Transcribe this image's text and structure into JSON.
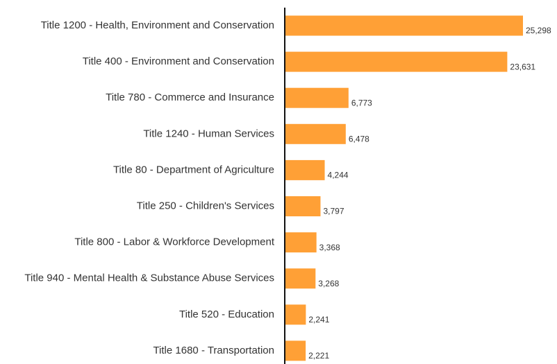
{
  "chart_data": {
    "type": "bar",
    "orientation": "horizontal",
    "title": "",
    "xlabel": "",
    "ylabel": "",
    "categories": [
      "Title 1200 - Health, Environment and Conservation",
      "Title 400 - Environment and Conservation",
      "Title 780 - Commerce and Insurance",
      "Title 1240 - Human Services",
      "Title 80 - Department of Agriculture",
      "Title 250 - Children's Services",
      "Title 800 - Labor & Workforce Development",
      "Title 940 - Mental Health & Substance Abuse Services",
      "Title 520 - Education",
      "Title 1680 - Transportation"
    ],
    "values": [
      25298,
      23631,
      6773,
      6478,
      4244,
      3797,
      3368,
      3268,
      2241,
      2221
    ],
    "value_labels": [
      "25,298",
      "23,631",
      "6,773",
      "6,478",
      "4,244",
      "3,797",
      "3,368",
      "3,268",
      "2,241",
      "2,221"
    ],
    "xlim": [
      0,
      25298
    ],
    "grid": false,
    "bar_color": "#FFA036",
    "axis_color": "#111111"
  }
}
